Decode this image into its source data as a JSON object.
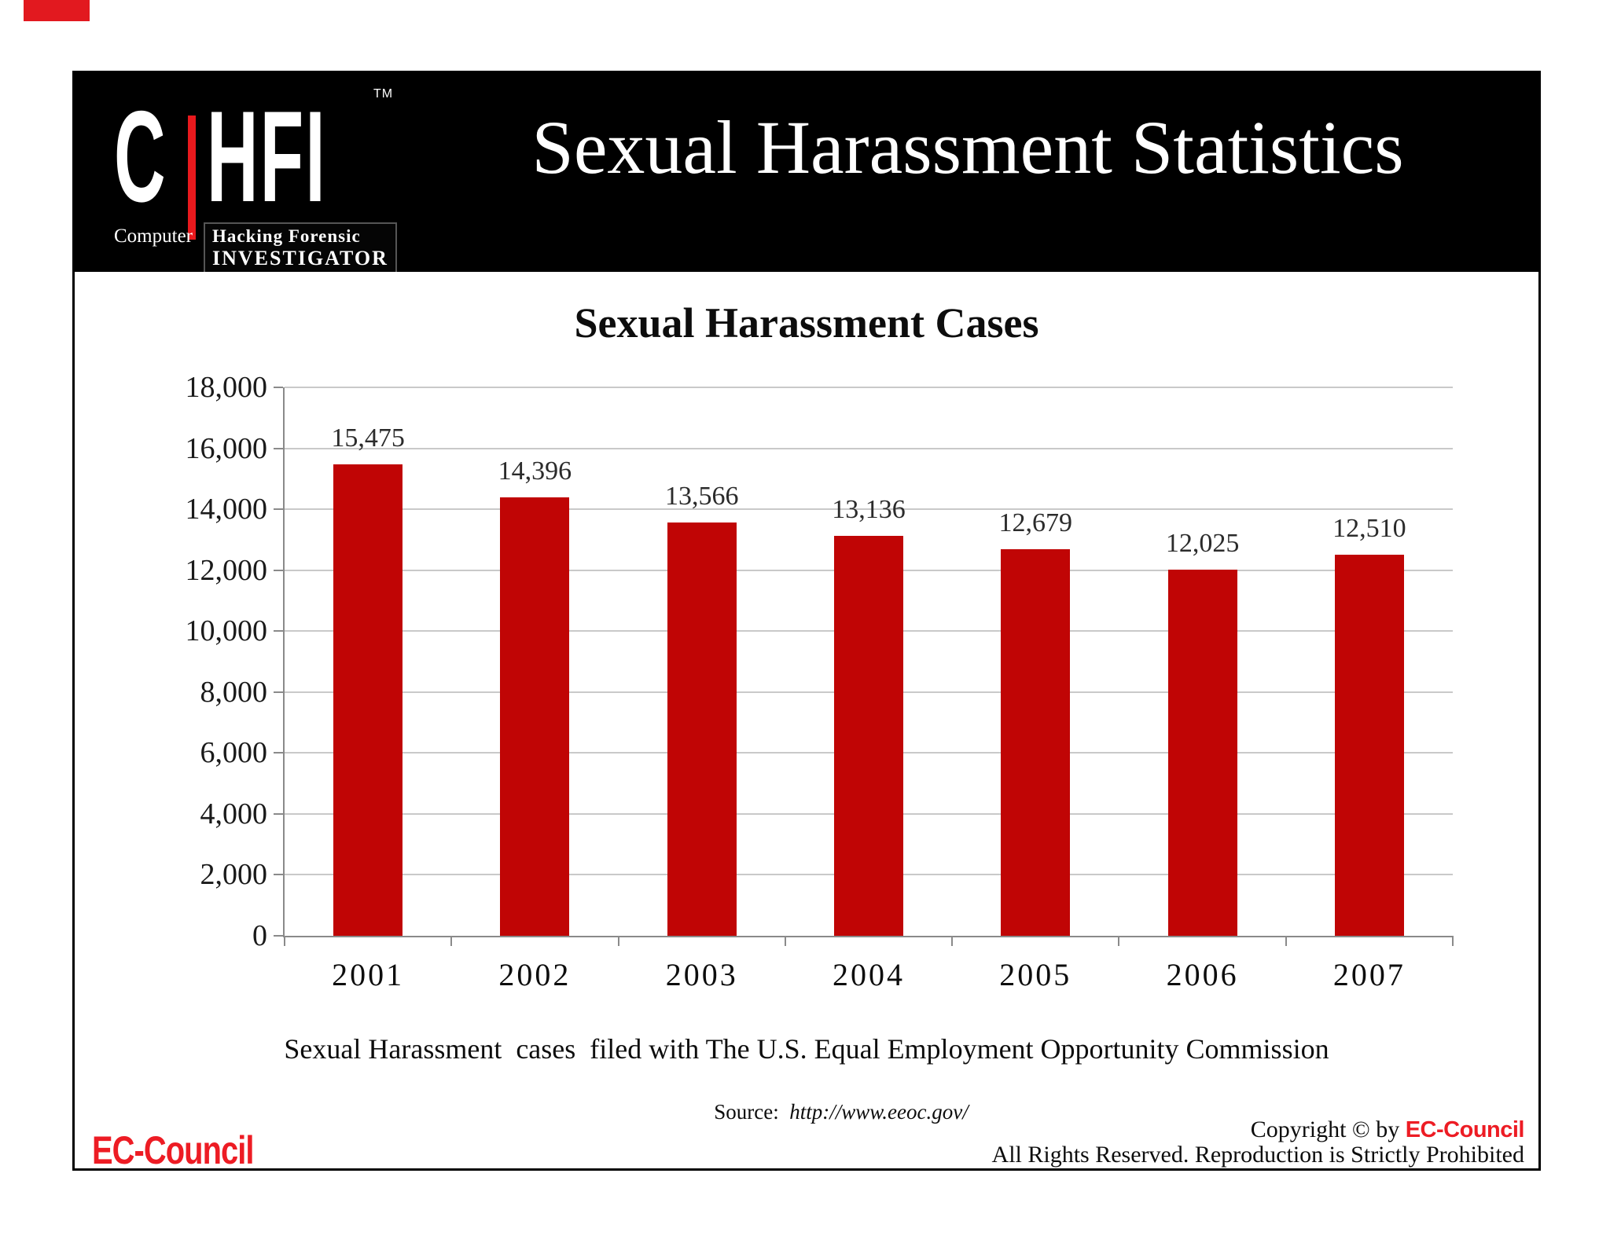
{
  "slide": {
    "top_mark_color": "#E2191F",
    "header": {
      "logo": {
        "c": "C",
        "hfi": "HFI",
        "tm": "TM",
        "computer": "Computer",
        "tagline_line1": "Hacking Forensic",
        "tagline_line2": "INVESTIGATOR",
        "bar_color": "#E8191D"
      },
      "title": "Sexual Harassment Statistics"
    },
    "caption": "Sexual Harassment  cases  filed with The U.S. Equal Employment Opportunity Commission",
    "source": {
      "label": "Source:",
      "url": "http://www.eeoc.gov/"
    },
    "footer": {
      "logo_text": "EC-Council",
      "copyright_prefix": "Copyright © by ",
      "copyright_brand": "EC-Council",
      "rights_text": "All Rights Reserved. Reproduction is Strictly Prohibited",
      "brand_color": "#ED1C24"
    }
  },
  "chart_data": {
    "type": "bar",
    "title": "Sexual Harassment Cases",
    "categories": [
      "2001",
      "2002",
      "2003",
      "2004",
      "2005",
      "2006",
      "2007"
    ],
    "values": [
      15475,
      14396,
      13566,
      13136,
      12679,
      12025,
      12510
    ],
    "value_labels": [
      "15,475",
      "14,396",
      "13,566",
      "13,136",
      "12,679",
      "12,025",
      "12,510"
    ],
    "xlabel": "",
    "ylabel": "",
    "ylim": [
      0,
      18000
    ],
    "ytick_step": 2000,
    "ytick_labels": [
      "0",
      "2,000",
      "4,000",
      "6,000",
      "8,000",
      "10,000",
      "12,000",
      "14,000",
      "16,000",
      "18,000"
    ],
    "bar_color": "#C00505",
    "grid": true,
    "legend": "none"
  }
}
